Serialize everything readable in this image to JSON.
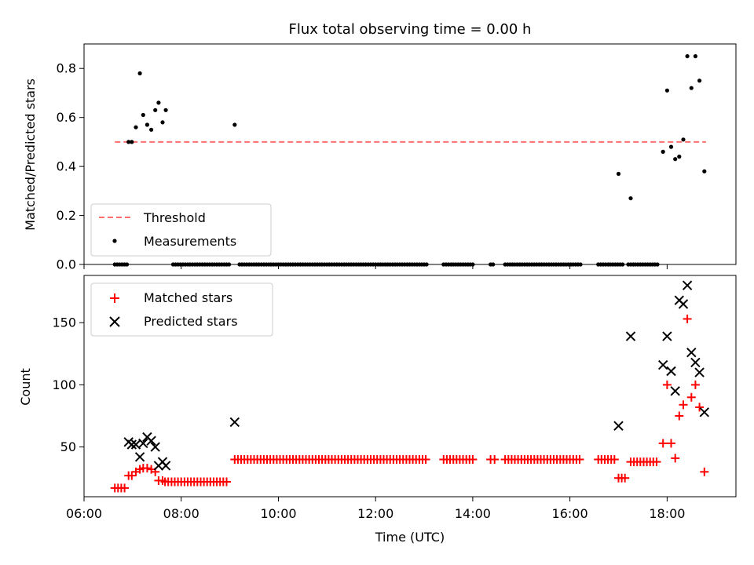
{
  "chart_data": [
    {
      "type": "scatter",
      "panel": "top",
      "title": "Flux total observing time = 0.00 h",
      "xlabel": "",
      "ylabel": "Matched/Predicted stars",
      "xlim": [
        "06:00",
        "19:25"
      ],
      "ylim": [
        0,
        0.9
      ],
      "yticks": [
        0.0,
        0.2,
        0.4,
        0.6,
        0.8
      ],
      "ytick_labels": [
        "0.0",
        "0.2",
        "0.4",
        "0.6",
        "0.8"
      ],
      "xtick_labels_visible": false,
      "legend": "lower-left",
      "grid": false,
      "colors": {
        "threshold": "#ff6f6f",
        "measurements": "#000000"
      },
      "threshold": {
        "name": "Threshold",
        "x": [
          "06:38",
          "18:48"
        ],
        "y": 0.5
      },
      "series": [
        {
          "name": "Measurements",
          "points": [
            [
              "06:55",
              0.5
            ],
            [
              "06:59",
              0.5
            ],
            [
              "07:04",
              0.56
            ],
            [
              "07:09",
              0.78
            ],
            [
              "07:13",
              0.61
            ],
            [
              "07:18",
              0.57
            ],
            [
              "07:23",
              0.55
            ],
            [
              "07:28",
              0.63
            ],
            [
              "07:32",
              0.66
            ],
            [
              "07:37",
              0.58
            ],
            [
              "07:41",
              0.63
            ],
            [
              "09:06",
              0.57
            ],
            [
              "17:00",
              0.37
            ],
            [
              "17:15",
              0.27
            ],
            [
              "17:55",
              0.46
            ],
            [
              "18:00",
              0.71
            ],
            [
              "18:05",
              0.48
            ],
            [
              "18:10",
              0.43
            ],
            [
              "18:15",
              0.44
            ],
            [
              "18:20",
              0.51
            ],
            [
              "18:25",
              0.85
            ],
            [
              "18:30",
              0.72
            ],
            [
              "18:35",
              0.85
            ],
            [
              "18:40",
              0.75
            ],
            [
              "18:46",
              0.38
            ]
          ],
          "zero_runs": [
            [
              "06:38",
              "06:53"
            ],
            [
              "07:50",
              "09:00"
            ],
            [
              "09:12",
              "13:05"
            ],
            [
              "13:24",
              "14:00"
            ],
            [
              "14:22",
              "14:27"
            ],
            [
              "14:40",
              "16:15"
            ],
            [
              "16:35",
              "17:05"
            ],
            [
              "17:12",
              "17:50"
            ]
          ]
        }
      ]
    },
    {
      "type": "scatter",
      "panel": "bottom",
      "title": "",
      "xlabel": "Time (UTC)",
      "ylabel": "Count",
      "xlim": [
        "06:00",
        "19:25"
      ],
      "ylim": [
        10,
        188
      ],
      "yticks": [
        50,
        100,
        150
      ],
      "ytick_labels": [
        "50",
        "100",
        "150"
      ],
      "xticks": [
        "06:00",
        "08:00",
        "10:00",
        "12:00",
        "14:00",
        "16:00",
        "18:00"
      ],
      "xtick_labels": [
        "06:00",
        "08:00",
        "10:00",
        "12:00",
        "14:00",
        "16:00",
        "18:00"
      ],
      "legend": "upper-left",
      "grid": false,
      "colors": {
        "matched": "#ff0000",
        "predicted": "#000000"
      },
      "series": [
        {
          "name": "Matched stars",
          "marker": "plus",
          "points": [
            [
              "06:38",
              17
            ],
            [
              "06:42",
              17
            ],
            [
              "06:46",
              17
            ],
            [
              "06:50",
              17
            ],
            [
              "06:55",
              27
            ],
            [
              "06:59",
              27
            ],
            [
              "07:04",
              30
            ],
            [
              "07:09",
              32
            ],
            [
              "07:13",
              33
            ],
            [
              "07:18",
              33
            ],
            [
              "07:23",
              32
            ],
            [
              "07:28",
              30
            ],
            [
              "07:32",
              23
            ],
            [
              "07:37",
              23
            ],
            [
              "09:06",
              40
            ],
            [
              "17:00",
              25
            ],
            [
              "17:04",
              25
            ],
            [
              "17:08",
              25
            ],
            [
              "17:55",
              53
            ],
            [
              "18:00",
              100
            ],
            [
              "18:05",
              53
            ],
            [
              "18:10",
              41
            ],
            [
              "18:15",
              75
            ],
            [
              "18:20",
              84
            ],
            [
              "18:25",
              153
            ],
            [
              "18:30",
              90
            ],
            [
              "18:35",
              100
            ],
            [
              "18:40",
              82
            ],
            [
              "18:46",
              30
            ]
          ],
          "constant_runs": [
            {
              "from": "07:40",
              "to": "08:58",
              "step_minutes": 4,
              "y": 22
            },
            {
              "from": "09:10",
              "to": "13:05",
              "step_minutes": 4,
              "y": 40
            },
            {
              "from": "13:24",
              "to": "14:00",
              "step_minutes": 4,
              "y": 40
            },
            {
              "from": "14:22",
              "to": "14:27",
              "step_minutes": 5,
              "y": 40
            },
            {
              "from": "14:40",
              "to": "16:15",
              "step_minutes": 4,
              "y": 40
            },
            {
              "from": "16:35",
              "to": "16:55",
              "step_minutes": 4,
              "y": 40
            },
            {
              "from": "17:15",
              "to": "17:50",
              "step_minutes": 4,
              "y": 38
            }
          ]
        },
        {
          "name": "Predicted stars",
          "marker": "x",
          "points": [
            [
              "06:55",
              54
            ],
            [
              "06:59",
              52
            ],
            [
              "07:04",
              52
            ],
            [
              "07:09",
              42
            ],
            [
              "07:13",
              53
            ],
            [
              "07:18",
              58
            ],
            [
              "07:23",
              55
            ],
            [
              "07:28",
              50
            ],
            [
              "07:32",
              35
            ],
            [
              "07:37",
              38
            ],
            [
              "07:41",
              35
            ],
            [
              "09:06",
              70
            ],
            [
              "17:00",
              67
            ],
            [
              "17:15",
              139
            ],
            [
              "17:55",
              116
            ],
            [
              "18:00",
              139
            ],
            [
              "18:05",
              111
            ],
            [
              "18:10",
              95
            ],
            [
              "18:15",
              168
            ],
            [
              "18:20",
              165
            ],
            [
              "18:25",
              180
            ],
            [
              "18:30",
              126
            ],
            [
              "18:35",
              118
            ],
            [
              "18:40",
              110
            ],
            [
              "18:46",
              78
            ]
          ]
        }
      ]
    }
  ]
}
